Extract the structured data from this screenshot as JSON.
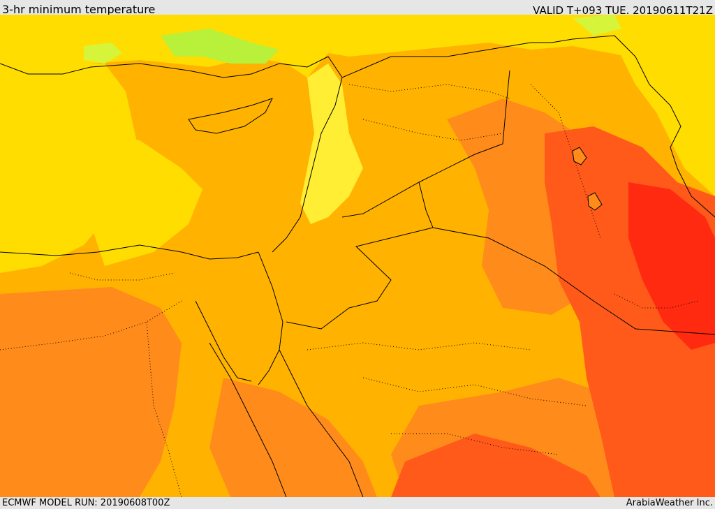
{
  "header": {
    "title": "3-hr minimum temperature",
    "valid_time": "VALID T+093 TUE. 20190611T21Z"
  },
  "footer": {
    "model_run": "ECMWF MODEL RUN: 20190608T00Z",
    "credit": "ArabiaWeather Inc."
  },
  "map": {
    "palette": {
      "coolest": "#b8f03a",
      "cool": "#ffff33",
      "mild": "#ffdd00",
      "warm": "#ffb300",
      "hot": "#ff8c1a",
      "very_hot": "#ff5a1a",
      "hottest": "#ff2a10"
    }
  }
}
